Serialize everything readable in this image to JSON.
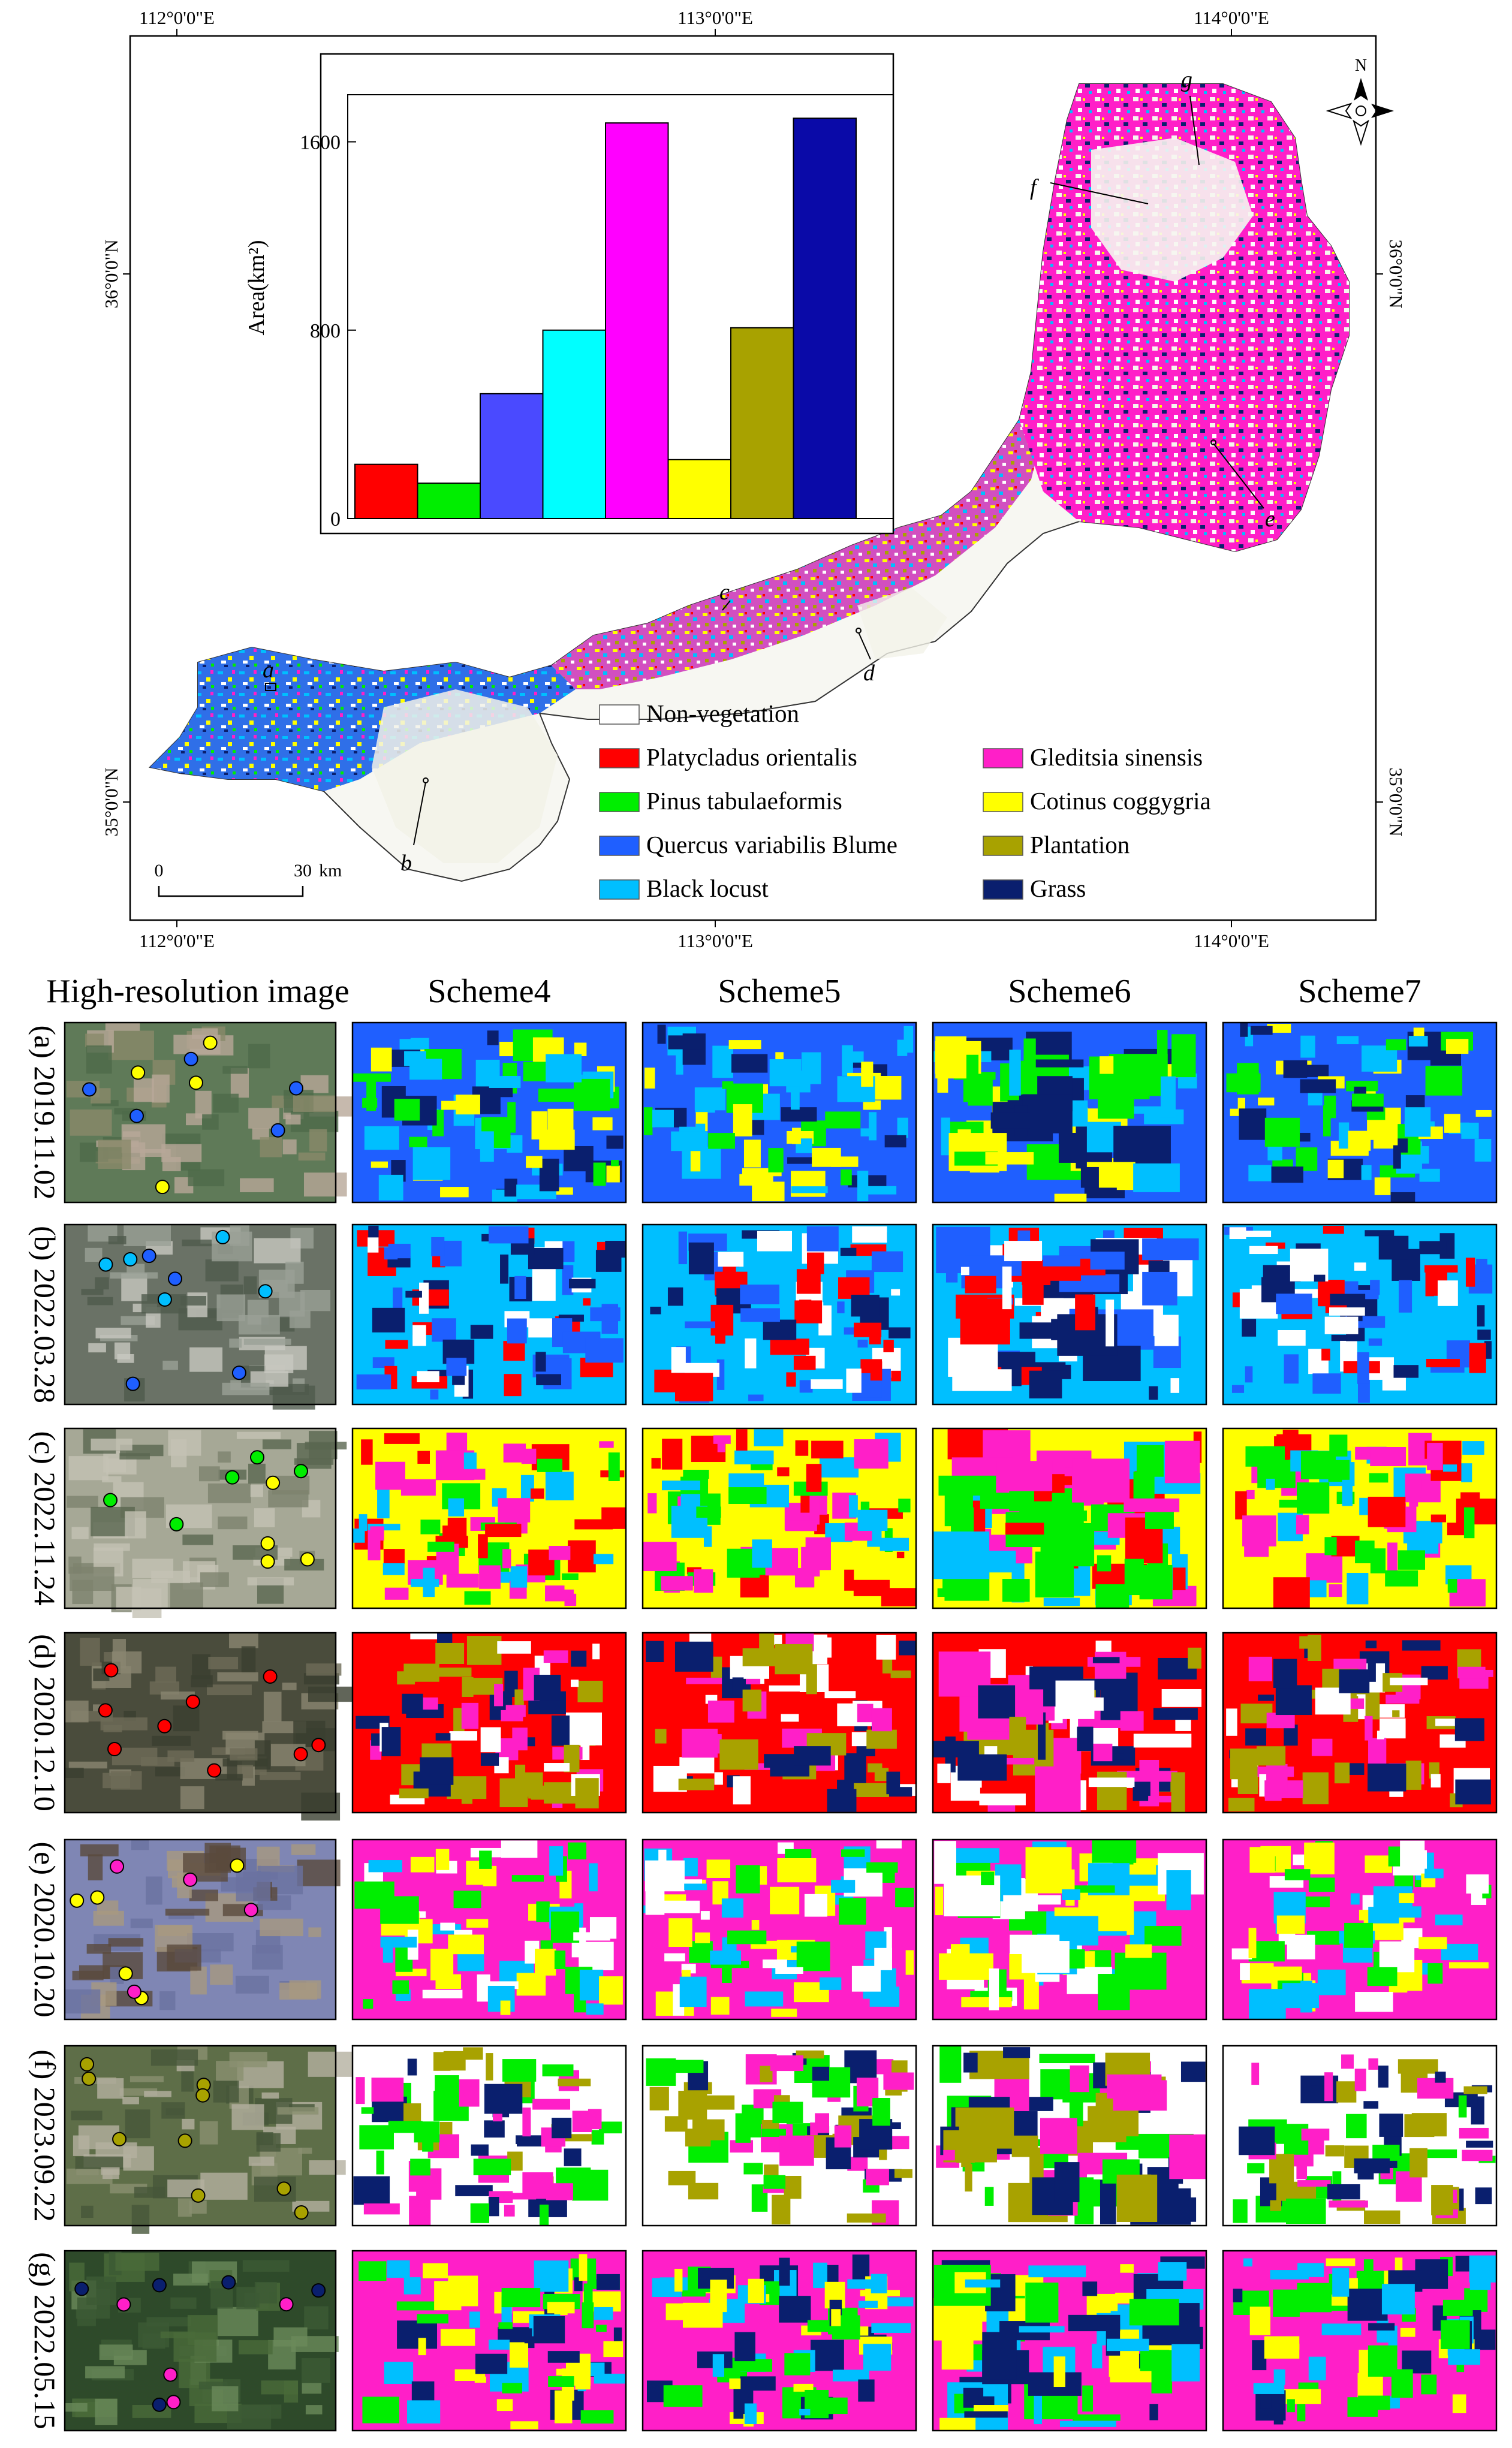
{
  "map": {
    "coords": {
      "top": [
        "112°0'0\"E",
        "113°0'0\"E",
        "114°0'0\"E"
      ],
      "bottom": [
        "112°0'0\"E",
        "113°0'0\"E",
        "114°0'0\"E"
      ],
      "left": [
        "36°0'0\"N",
        "35°0'0\"N"
      ],
      "right": [
        "36°0'0\"N",
        "35°0'0\"N"
      ]
    },
    "north_label": "N",
    "scale": {
      "start": "0",
      "end": "30",
      "unit": "km"
    },
    "site_labels": [
      "a",
      "b",
      "c",
      "d",
      "e",
      "f",
      "g"
    ],
    "legend": [
      {
        "label": "Non-vegetation",
        "color": "#ffffff"
      },
      {
        "label": "Platycladus orientalis",
        "color": "#ff0000"
      },
      {
        "label": "Pinus tabulaeformis",
        "color": "#00ee00"
      },
      {
        "label": "Quercus variabilis Blume",
        "color": "#1f5fff"
      },
      {
        "label": "Black locust",
        "color": "#00bfff"
      },
      {
        "label": "Gleditsia sinensis",
        "color": "#ff1fc8"
      },
      {
        "label": "Cotinus coggygria",
        "color": "#ffff00"
      },
      {
        "label": "Plantation",
        "color": "#a8a200"
      },
      {
        "label": "Grass",
        "color": "#0a1f6e"
      }
    ]
  },
  "chart_data": {
    "type": "bar",
    "ylabel": "Area(km²)",
    "ylim": [
      0,
      1800
    ],
    "yticks": [
      "0",
      "800",
      "1600"
    ],
    "categories": [
      "Platycladus orientalis",
      "Pinus tabulaeformis",
      "Quercus variabilis Blume",
      "Black locust",
      "Gleditsia sinensis",
      "Cotinus coggygria",
      "Plantation",
      "Grass"
    ],
    "values": [
      230,
      150,
      530,
      800,
      1680,
      250,
      810,
      1700
    ],
    "colors": [
      "#ff0000",
      "#00ee00",
      "#4a4aff",
      "#00ffff",
      "#ff00ff",
      "#ffff00",
      "#a8a200",
      "#0a0aa8"
    ]
  },
  "grid": {
    "column_headers": [
      "High-resolution image",
      "Scheme4",
      "Scheme5",
      "Scheme6",
      "Scheme7"
    ],
    "rows": [
      {
        "label": "(a)",
        "date": "2019.11.02"
      },
      {
        "label": "(b)",
        "date": "2022.03.28"
      },
      {
        "label": "(c)",
        "date": "2022.11.24"
      },
      {
        "label": "(d)",
        "date": "2020.12.10"
      },
      {
        "label": "(e)",
        "date": "2020.10.20"
      },
      {
        "label": "(f)",
        "date": "2023.09.22"
      },
      {
        "label": "(g)",
        "date": "2022.05.15"
      }
    ]
  }
}
